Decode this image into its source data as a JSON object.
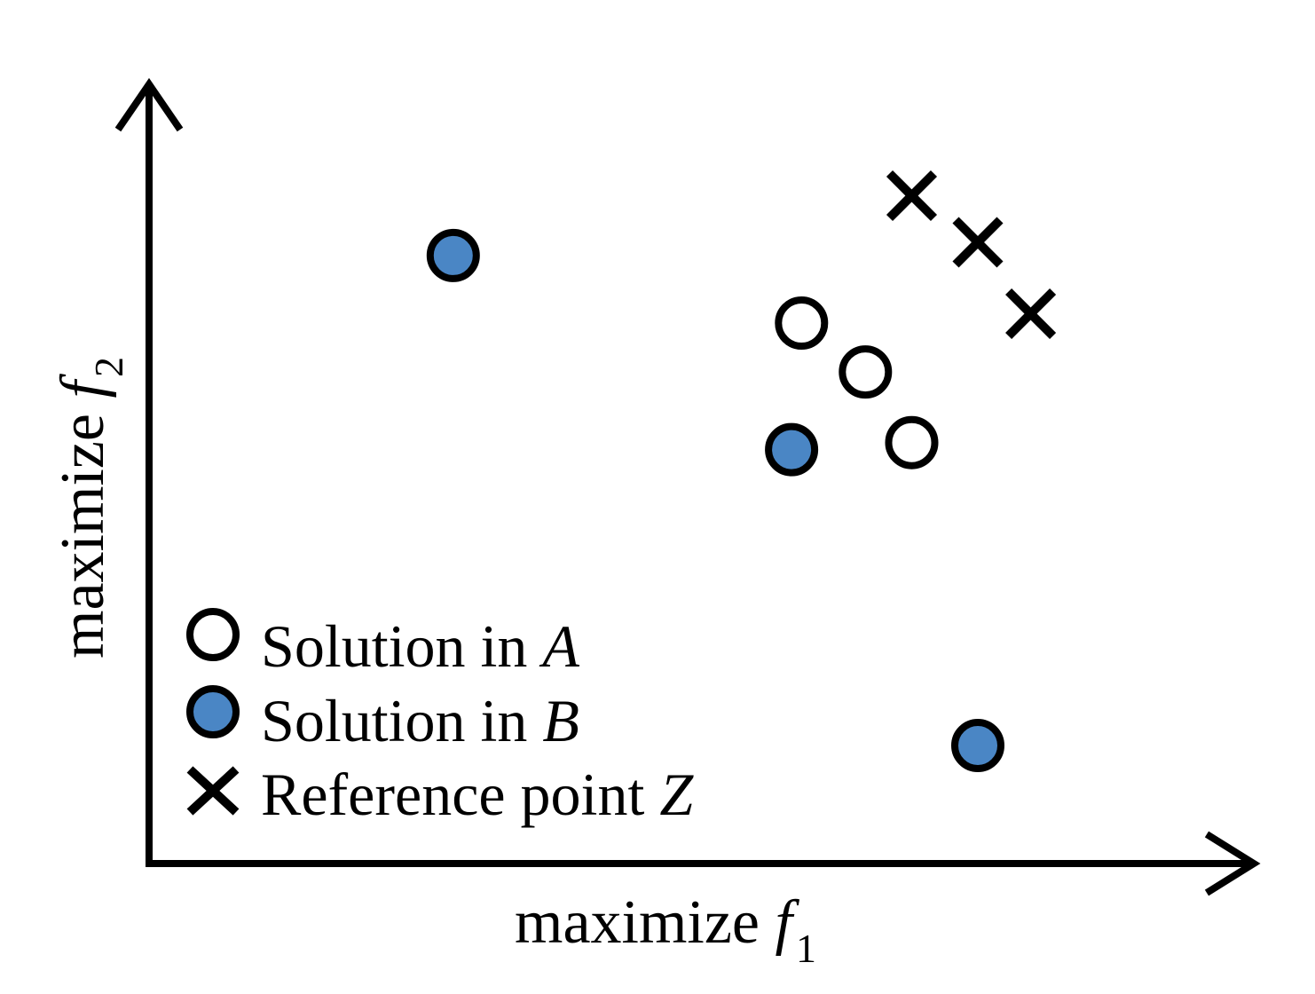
{
  "colors": {
    "axis": "#000000",
    "solution_a_fill": "#ffffff",
    "solution_b_fill": "#4a86c5",
    "marker_stroke": "#000000",
    "background": "#ffffff"
  },
  "axes": {
    "x": {
      "text": "maximize ",
      "var": "f",
      "sub": "1"
    },
    "y": {
      "text": "maximize ",
      "var": "f",
      "sub": "2"
    }
  },
  "legend": {
    "items": [
      {
        "marker": "open-circle-icon",
        "text": "Solution in ",
        "var": "A"
      },
      {
        "marker": "filled-circle-icon",
        "text": "Solution in ",
        "var": "B"
      },
      {
        "marker": "cross-icon",
        "text": "Reference point ",
        "var": "Z"
      }
    ]
  },
  "points": {
    "solutions_a": [
      {
        "f1": 0.592,
        "f2": 0.696
      },
      {
        "f1": 0.65,
        "f2": 0.633
      },
      {
        "f1": 0.692,
        "f2": 0.542
      }
    ],
    "solutions_b": [
      {
        "f1": 0.276,
        "f2": 0.783
      },
      {
        "f1": 0.583,
        "f2": 0.533
      },
      {
        "f1": 0.752,
        "f2": 0.152
      }
    ],
    "reference_points_z": [
      {
        "f1": 0.692,
        "f2": 0.86
      },
      {
        "f1": 0.752,
        "f2": 0.8
      },
      {
        "f1": 0.8,
        "f2": 0.708
      }
    ]
  }
}
